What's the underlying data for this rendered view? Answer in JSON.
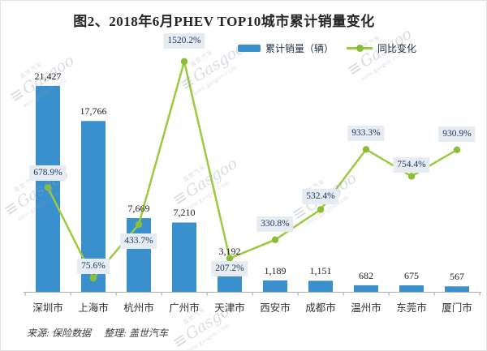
{
  "chart_data": {
    "type": "bar",
    "combo": "bar+line",
    "title": "图2、2018年6月PHEV TOP10城市累计销量变化",
    "categories": [
      "深圳市",
      "上海市",
      "杭州市",
      "广州市",
      "天津市",
      "西安市",
      "成都市",
      "温州市",
      "东莞市",
      "厦门市"
    ],
    "series": [
      {
        "name": "累计销量（辆）",
        "type": "bar",
        "values": [
          21427,
          17766,
          7669,
          7210,
          3192,
          1189,
          1151,
          682,
          675,
          567
        ],
        "labels": [
          "21,427",
          "17,766",
          "7,669",
          "7,210",
          "3,192",
          "1,189",
          "1,151",
          "682",
          "675",
          "567"
        ]
      },
      {
        "name": "同比变化",
        "type": "line",
        "values": [
          678.9,
          75.6,
          433.7,
          1520.2,
          207.2,
          330.8,
          532.4,
          933.3,
          754.4,
          930.9
        ],
        "labels": [
          "678.9%",
          "75.6%",
          "433.7%",
          "1520.2%",
          "207.2%",
          "330.8%",
          "532.4%",
          "933.3%",
          "754.4%",
          "930.9%"
        ]
      }
    ],
    "bar_axis_range": [
      0,
      21500
    ],
    "pct_axis_range": [
      0,
      1600
    ],
    "grid": false,
    "legend_position": "top",
    "label_placement": [
      "above",
      "above",
      "below",
      "above",
      "below",
      "above",
      "above",
      "above",
      "above",
      "above"
    ],
    "label_gap": [
      8,
      5,
      11,
      16,
      3,
      10,
      7,
      10,
      4,
      10
    ]
  },
  "legend": {
    "bar_label": "累计销量（辆）",
    "line_label": "同比变化"
  },
  "footer": {
    "source": "来源: 保险数据",
    "editor": "整理: 盖世汽车"
  },
  "watermark": {
    "brand": "Gasgoo",
    "domain": "auto.gasgoo.com",
    "cjk": "盖世汽车"
  },
  "colors": {
    "bar": "#3a90cc",
    "line": "#9bca3e",
    "marker": "#8cbd36",
    "label_box_bg": "#e7ecf3",
    "label_text": "#1f3a60",
    "title": "#262626",
    "axis": "#aaaaaa"
  }
}
